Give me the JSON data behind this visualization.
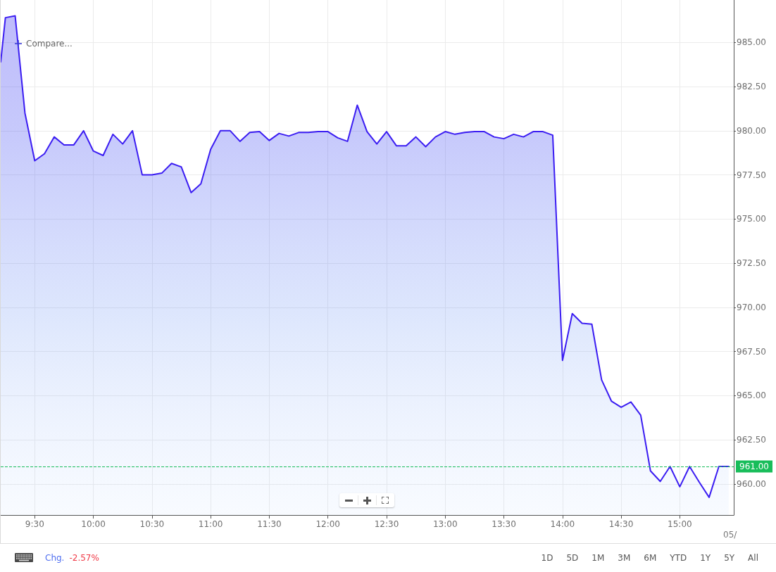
{
  "chart_data": {
    "type": "area",
    "x": [
      9.21,
      9.25,
      9.3333,
      9.4167,
      9.5,
      9.5833,
      9.6667,
      9.75,
      9.8333,
      9.9167,
      10,
      10.0833,
      10.1667,
      10.25,
      10.3333,
      10.4167,
      10.5,
      10.5833,
      10.6667,
      10.75,
      10.8333,
      10.9167,
      11,
      11.0833,
      11.1667,
      11.25,
      11.3333,
      11.4167,
      11.5,
      11.5833,
      11.6667,
      11.75,
      11.8333,
      11.9167,
      12,
      12.0833,
      12.1667,
      12.25,
      12.3333,
      12.4167,
      12.5,
      12.5833,
      12.6667,
      12.75,
      12.8333,
      12.9167,
      13,
      13.0833,
      13.1667,
      13.25,
      13.3333,
      13.4167,
      13.5,
      13.5833,
      13.6667,
      13.75,
      13.8333,
      13.9167,
      14,
      14.0833,
      14.1667,
      14.25,
      14.3333,
      14.4167,
      14.5,
      14.5833,
      14.6667,
      14.75,
      14.8333,
      14.9167,
      15,
      15.0833,
      15.1667,
      15.25,
      15.3333,
      15.4167
    ],
    "series": [
      {
        "color": "#3b1df2",
        "values": [
          983.9,
          986.4,
          986.5,
          981.0,
          978.3,
          978.7,
          979.65,
          979.2,
          979.2,
          980.0,
          978.85,
          978.6,
          979.8,
          979.25,
          980.0,
          977.5,
          977.5,
          977.6,
          978.15,
          977.95,
          976.5,
          977.0,
          978.95,
          980.0,
          980.0,
          979.4,
          979.9,
          979.95,
          979.45,
          979.85,
          979.7,
          979.9,
          979.9,
          979.95,
          979.95,
          979.6,
          979.4,
          981.45,
          979.95,
          979.25,
          979.95,
          979.15,
          979.15,
          979.65,
          979.1,
          979.65,
          979.95,
          979.8,
          979.9,
          979.95,
          979.95,
          979.65,
          979.55,
          979.8,
          979.65,
          979.95,
          979.95,
          979.75,
          967.0,
          969.65,
          969.1,
          969.05,
          965.9,
          964.7,
          964.35,
          964.65,
          963.9,
          960.75,
          960.15,
          961.0,
          959.85,
          961.0,
          960.1,
          959.25,
          961.0,
          961.0
        ]
      }
    ],
    "xlim": [
      9.21,
      15.46
    ],
    "xticks": [
      {
        "value": 9.5,
        "label": "9:30"
      },
      {
        "value": 10,
        "label": "10:00"
      },
      {
        "value": 10.5,
        "label": "10:30"
      },
      {
        "value": 11,
        "label": "11:00"
      },
      {
        "value": 11.5,
        "label": "11:30"
      },
      {
        "value": 12,
        "label": "12:00"
      },
      {
        "value": 12.5,
        "label": "12:30"
      },
      {
        "value": 13,
        "label": "13:00"
      },
      {
        "value": 13.5,
        "label": "13:30"
      },
      {
        "value": 14,
        "label": "14:00"
      },
      {
        "value": 14.5,
        "label": "14:30"
      },
      {
        "value": 15,
        "label": "15:00"
      }
    ],
    "ylim": [
      958.25,
      987.4
    ],
    "yticks": [
      {
        "value": 960,
        "label": "960.00"
      },
      {
        "value": 962.5,
        "label": "962.50"
      },
      {
        "value": 965,
        "label": "965.00"
      },
      {
        "value": 967.5,
        "label": "967.50"
      },
      {
        "value": 970,
        "label": "970.00"
      },
      {
        "value": 972.5,
        "label": "972.50"
      },
      {
        "value": 975,
        "label": "975.00"
      },
      {
        "value": 977.5,
        "label": "977.50"
      },
      {
        "value": 980,
        "label": "980.00"
      },
      {
        "value": 982.5,
        "label": "982.50"
      },
      {
        "value": 985,
        "label": "985.00"
      }
    ],
    "grid": true,
    "ref_lines": [
      {
        "axis": "y",
        "value": 961,
        "label": "961.00",
        "color": "#18bd5a",
        "line_style": "dashed"
      }
    ],
    "annotations": [
      "Compare...",
      "Chg.",
      "-2.57%",
      "1D",
      "5D",
      "1M",
      "3M",
      "6M",
      "YTD",
      "1Y",
      "5Y",
      "All",
      "05/"
    ]
  }
}
